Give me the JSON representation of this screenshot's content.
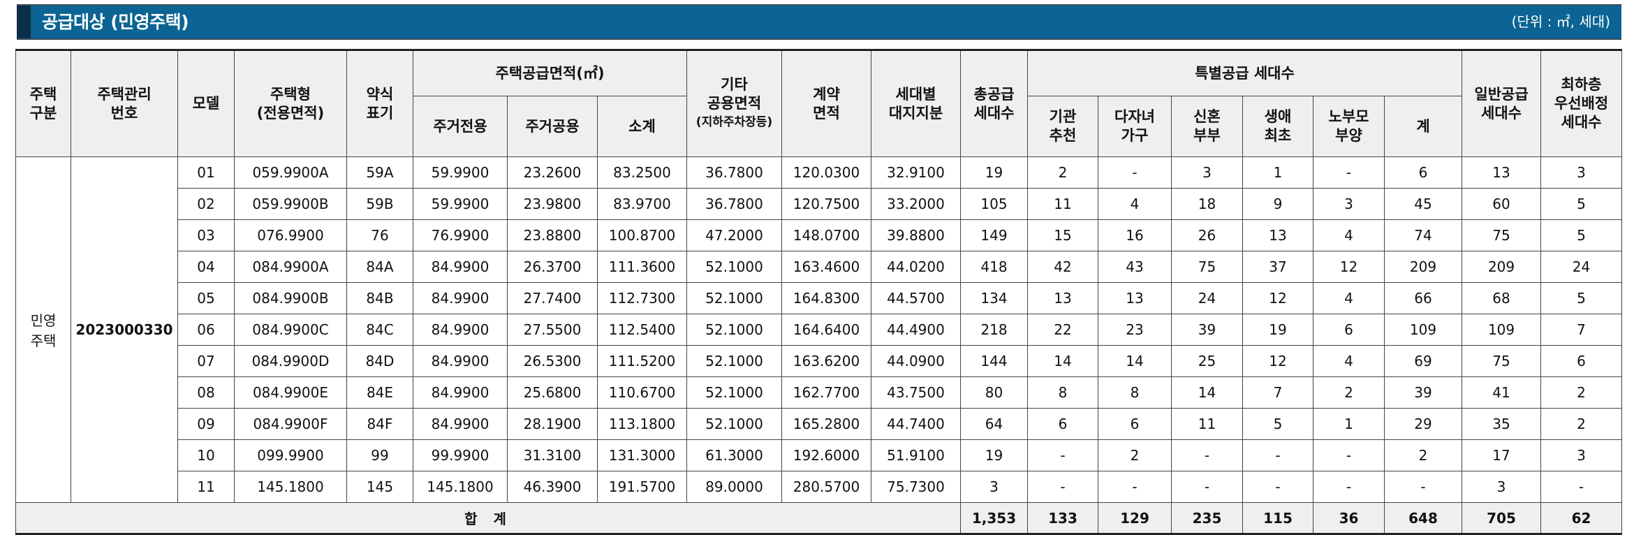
{
  "header": {
    "title": "공급대상 (민영주택)",
    "unit": "(단위 : ㎡, 세대)"
  },
  "columns": {
    "housing_type": [
      "주택",
      "구분"
    ],
    "mgmt_no": [
      "주택관리",
      "번호"
    ],
    "model": "모델",
    "house_type": [
      "주택형",
      "(전용면적)"
    ],
    "abbr": [
      "약식",
      "표기"
    ],
    "supply_area_group": "주택공급면적(㎡)",
    "exclusive": "주거전용",
    "common": "주거공용",
    "subtotal": "소계",
    "other_area": [
      "기타",
      "공용면적",
      "(지하주차장등)"
    ],
    "contract_area": [
      "계약",
      "면적"
    ],
    "land_share": [
      "세대별",
      "대지지분"
    ],
    "total_supply": [
      "총공급",
      "세대수"
    ],
    "special_group": "특별공급 세대수",
    "agency": [
      "기관",
      "추천"
    ],
    "multi_child": [
      "다자녀",
      "가구"
    ],
    "newlywed": [
      "신혼",
      "부부"
    ],
    "first_life": [
      "생애",
      "최초"
    ],
    "elderly": [
      "노부모",
      "부양"
    ],
    "special_total": "계",
    "general": [
      "일반공급",
      "세대수"
    ],
    "lowest_floor": [
      "최하층",
      "우선배정",
      "세대수"
    ]
  },
  "group": {
    "housing_type": [
      "민영",
      "주택"
    ],
    "mgmt_no": "2023000330"
  },
  "rows": [
    [
      "01",
      "059.9900A",
      "59A",
      "59.9900",
      "23.2600",
      "83.2500",
      "36.7800",
      "120.0300",
      "32.9100",
      "19",
      "2",
      "-",
      "3",
      "1",
      "-",
      "6",
      "13",
      "3"
    ],
    [
      "02",
      "059.9900B",
      "59B",
      "59.9900",
      "23.9800",
      "83.9700",
      "36.7800",
      "120.7500",
      "33.2000",
      "105",
      "11",
      "4",
      "18",
      "9",
      "3",
      "45",
      "60",
      "5"
    ],
    [
      "03",
      "076.9900",
      "76",
      "76.9900",
      "23.8800",
      "100.8700",
      "47.2000",
      "148.0700",
      "39.8800",
      "149",
      "15",
      "16",
      "26",
      "13",
      "4",
      "74",
      "75",
      "5"
    ],
    [
      "04",
      "084.9900A",
      "84A",
      "84.9900",
      "26.3700",
      "111.3600",
      "52.1000",
      "163.4600",
      "44.0200",
      "418",
      "42",
      "43",
      "75",
      "37",
      "12",
      "209",
      "209",
      "24"
    ],
    [
      "05",
      "084.9900B",
      "84B",
      "84.9900",
      "27.7400",
      "112.7300",
      "52.1000",
      "164.8300",
      "44.5700",
      "134",
      "13",
      "13",
      "24",
      "12",
      "4",
      "66",
      "68",
      "5"
    ],
    [
      "06",
      "084.9900C",
      "84C",
      "84.9900",
      "27.5500",
      "112.5400",
      "52.1000",
      "164.6400",
      "44.4900",
      "218",
      "22",
      "23",
      "39",
      "19",
      "6",
      "109",
      "109",
      "7"
    ],
    [
      "07",
      "084.9900D",
      "84D",
      "84.9900",
      "26.5300",
      "111.5200",
      "52.1000",
      "163.6200",
      "44.0900",
      "144",
      "14",
      "14",
      "25",
      "12",
      "4",
      "69",
      "75",
      "6"
    ],
    [
      "08",
      "084.9900E",
      "84E",
      "84.9900",
      "25.6800",
      "110.6700",
      "52.1000",
      "162.7700",
      "43.7500",
      "80",
      "8",
      "8",
      "14",
      "7",
      "2",
      "39",
      "41",
      "2"
    ],
    [
      "09",
      "084.9900F",
      "84F",
      "84.9900",
      "28.1900",
      "113.1800",
      "52.1000",
      "165.2800",
      "44.7400",
      "64",
      "6",
      "6",
      "11",
      "5",
      "1",
      "29",
      "35",
      "2"
    ],
    [
      "10",
      "099.9900",
      "99",
      "99.9900",
      "31.3100",
      "131.3000",
      "61.3000",
      "192.6000",
      "51.9100",
      "19",
      "-",
      "2",
      "-",
      "-",
      "-",
      "2",
      "17",
      "3"
    ],
    [
      "11",
      "145.1800",
      "145",
      "145.1800",
      "46.3900",
      "191.5700",
      "89.0000",
      "280.5700",
      "75.7300",
      "3",
      "-",
      "-",
      "-",
      "-",
      "-",
      "-",
      "3",
      "-"
    ]
  ],
  "total": {
    "label": "합 계",
    "values": [
      "1,353",
      "133",
      "129",
      "235",
      "115",
      "36",
      "648",
      "705",
      "62"
    ]
  }
}
